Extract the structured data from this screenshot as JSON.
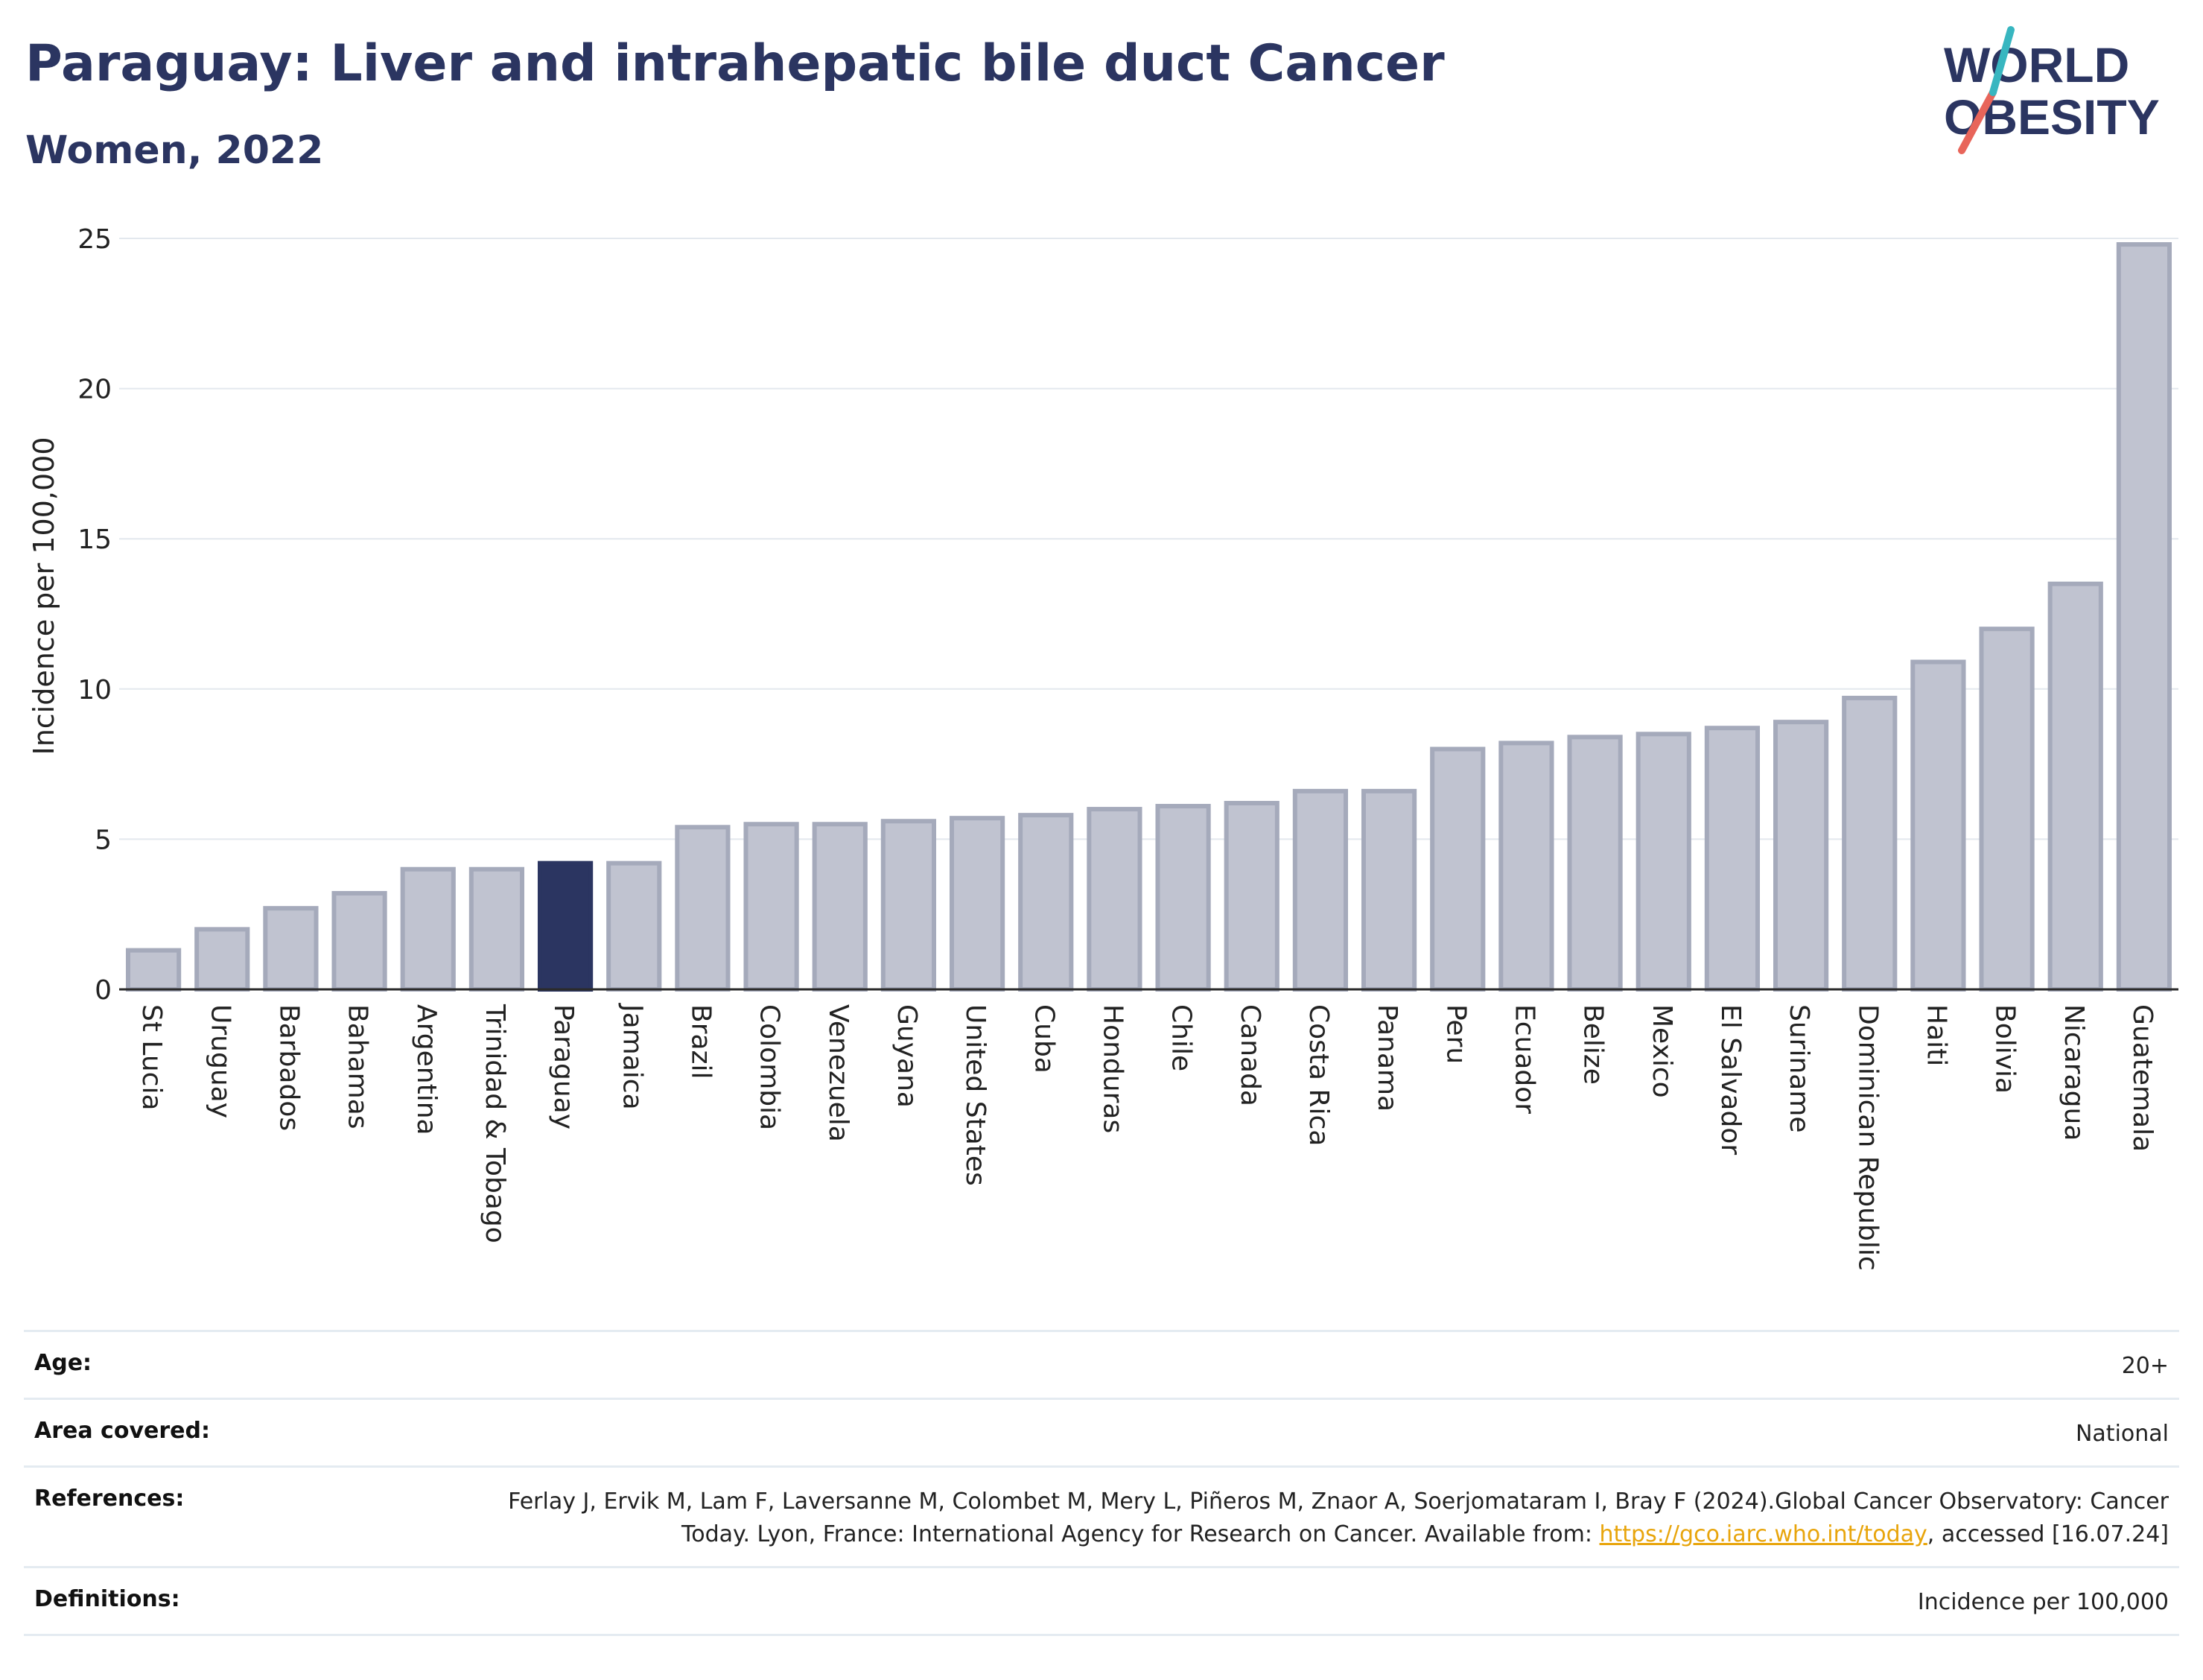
{
  "header": {
    "title": "Paraguay: Liver and intrahepatic bile duct Cancer",
    "subtitle": "Women, 2022"
  },
  "logo": {
    "line1": "WORLD",
    "line2": "OBESITY",
    "colors": {
      "text": "#2b3561",
      "slash_red": "#e8655a",
      "slash_teal": "#38b6c0"
    }
  },
  "chart_data": {
    "type": "bar",
    "title": "",
    "xlabel": "",
    "ylabel": "Incidence per 100,000",
    "ylim": [
      0,
      25
    ],
    "yticks": [
      0,
      5,
      10,
      15,
      20,
      25
    ],
    "grid": true,
    "legend": "none",
    "highlight": "Paraguay",
    "colors": {
      "bar": "#c0c3d0",
      "bar_border": "#a5aabb",
      "highlight": "#2b3561",
      "grid": "#e3e8ee",
      "axis": "#2b2b2b"
    },
    "categories": [
      "St Lucia",
      "Uruguay",
      "Barbados",
      "Bahamas",
      "Argentina",
      "Trinidad & Tobago",
      "Paraguay",
      "Jamaica",
      "Brazil",
      "Colombia",
      "Venezuela",
      "Guyana",
      "United States",
      "Cuba",
      "Honduras",
      "Chile",
      "Canada",
      "Costa Rica",
      "Panama",
      "Peru",
      "Ecuador",
      "Belize",
      "Mexico",
      "El Salvador",
      "Suriname",
      "Dominican Republic",
      "Haiti",
      "Bolivia",
      "Nicaragua",
      "Guatemala"
    ],
    "values": [
      1.3,
      2.0,
      2.7,
      3.2,
      4.0,
      4.0,
      4.2,
      4.2,
      5.4,
      5.5,
      5.5,
      5.6,
      5.7,
      5.8,
      6.0,
      6.1,
      6.2,
      6.6,
      6.6,
      8.0,
      8.2,
      8.4,
      8.5,
      8.7,
      8.9,
      9.7,
      10.9,
      12.0,
      13.5,
      24.8
    ]
  },
  "meta": {
    "age_label": "Age:",
    "age_value": "20+",
    "area_label": "Area covered:",
    "area_value": "National",
    "references_label": "References:",
    "references_text1": "Ferlay J, Ervik M, Lam F, Laversanne M, Colombet M, Mery L, Piñeros M, Znaor A, Soerjomataram I, Bray F (2024).Global Cancer Observatory: Cancer Today. Lyon, France: International Agency for Research on Cancer. Available from:",
    "references_link": "https://gco.iarc.who.int/today",
    "references_text2": ", accessed [16.07.24]",
    "definitions_label": "Definitions:",
    "definitions_value": "Incidence per 100,000"
  }
}
